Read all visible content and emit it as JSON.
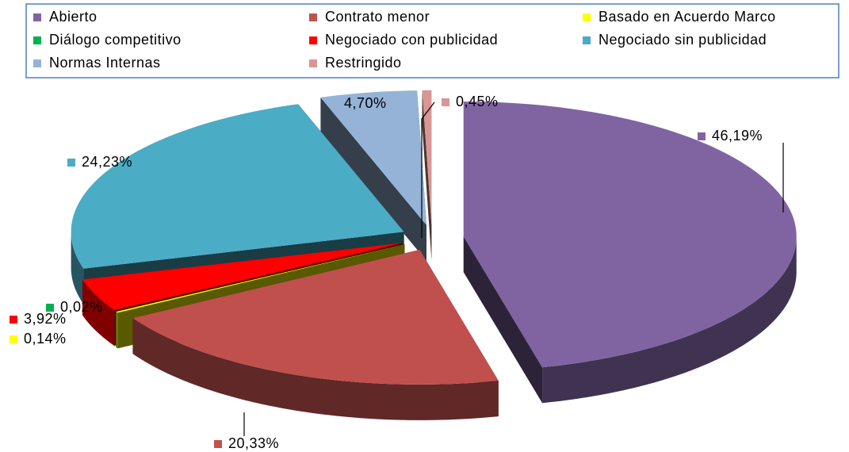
{
  "chart_data": {
    "type": "pie3d",
    "categories": [
      "Abierto",
      "Contrato menor",
      "Basado en Acuerdo Marco",
      "Diálogo competitivo",
      "Negociado con publicidad",
      "Negociado sin publicidad",
      "Normas Internas",
      "Restringido"
    ],
    "values": [
      46.19,
      20.33,
      0.14,
      0.02,
      3.92,
      24.23,
      4.7,
      0.45
    ],
    "value_labels": [
      "46,19%",
      "20,33%",
      "0,14%",
      "0,02%",
      "3,92%",
      "24,23%",
      "4,70%",
      "0,45%"
    ],
    "colors": [
      "#8064a2",
      "#c0504d",
      "#ffff00",
      "#00b050",
      "#ff0000",
      "#4bacc6",
      "#95b3d7",
      "#d99694"
    ],
    "legend": "top"
  }
}
